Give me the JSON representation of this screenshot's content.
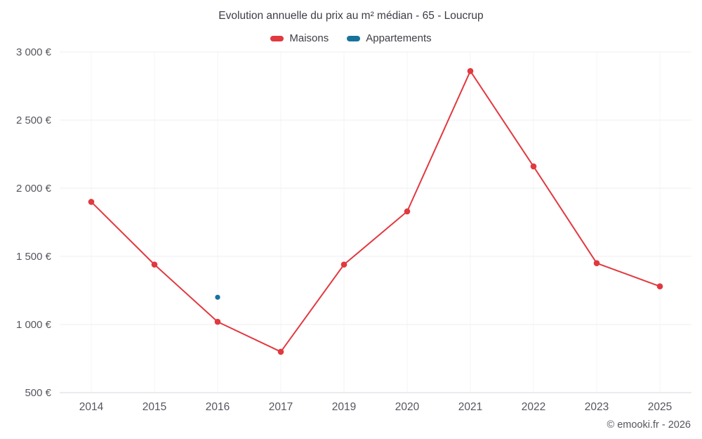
{
  "title": "Evolution annuelle du prix au m² médian - 65 - Loucrup",
  "legend": [
    {
      "label": "Maisons",
      "color": "#e2383f"
    },
    {
      "label": "Appartements",
      "color": "#17739c"
    }
  ],
  "footer": "© emooki.fr - 2026",
  "chart_data": {
    "type": "line",
    "title": "Evolution annuelle du prix au m² médian - 65 - Loucrup",
    "categories": [
      "2014",
      "2015",
      "2016",
      "2017",
      "2019",
      "2020",
      "2021",
      "2022",
      "2023",
      "2025"
    ],
    "series": [
      {
        "name": "Maisons",
        "color": "#e2383f",
        "marker_r": 4.3,
        "values": [
          1900,
          1440,
          1020,
          800,
          1440,
          1830,
          2860,
          2160,
          1450,
          1280
        ]
      },
      {
        "name": "Appartements",
        "color": "#17739c",
        "marker_r": 3.6,
        "values": [
          null,
          null,
          1200,
          null,
          null,
          null,
          null,
          null,
          null,
          null
        ]
      }
    ],
    "xlabel": "",
    "ylabel": "",
    "ylim": [
      500,
      3000
    ],
    "yticks": [
      500,
      1000,
      1500,
      2000,
      2500,
      3000
    ],
    "ytick_labels": [
      "500 €",
      "1 000 €",
      "1 500 €",
      "2 000 €",
      "2 500 €",
      "3 000 €"
    ],
    "grid": true,
    "legend_position": "top",
    "colors": {
      "grid_h": "#efeff3",
      "grid_v": "#f4f4f7",
      "axis_line": "#d9d9e0",
      "tick_text": "#55555f"
    }
  }
}
